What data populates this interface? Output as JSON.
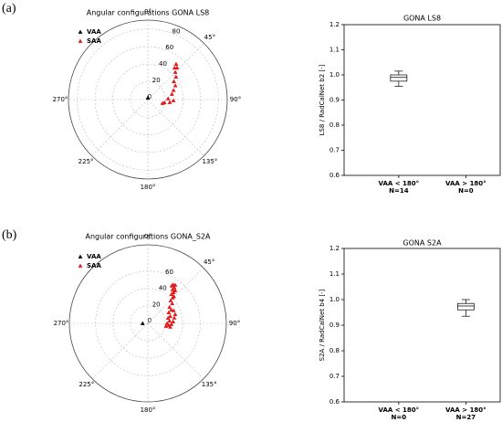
{
  "panel_labels": [
    "(a)",
    "(b)"
  ],
  "chart_data": [
    {
      "type": "polar_scatter",
      "title": "Angular configurations GONA LS8",
      "rlim": [
        0,
        90
      ],
      "rticks": [
        0,
        20,
        40,
        60,
        80
      ],
      "thetaticks": [
        {
          "value": 0,
          "label": "0°"
        },
        {
          "value": 45,
          "label": "45°"
        },
        {
          "value": 90,
          "label": "90°"
        },
        {
          "value": 135,
          "label": "135°"
        },
        {
          "value": 180,
          "label": "180°"
        },
        {
          "value": 225,
          "label": "225°"
        },
        {
          "value": 270,
          "label": "270°"
        }
      ],
      "grid": true,
      "series": [
        {
          "name": "VAA",
          "color": "#000000",
          "theta": [
            0
          ],
          "values": [
            2
          ]
        },
        {
          "name": "SAA",
          "color": "#e31a1c",
          "theta": [
            38.5,
            42.4,
            45,
            51,
            55,
            63,
            70,
            77,
            87,
            100,
            97,
            92,
            104,
            40
          ],
          "values": [
            51.5,
            49,
            44,
            41,
            36,
            35,
            31,
            28,
            23,
            19,
            25,
            29,
            17,
            47
          ]
        }
      ]
    },
    {
      "type": "box",
      "title": "GONA LS8",
      "ylabel": "LS8 / RadCalNet b2 [-]",
      "categories": [
        "VAA < 180°",
        "VAA > 180°"
      ],
      "n_labels": [
        "N=14",
        "N=0"
      ],
      "boxes": [
        {
          "min": 0.955,
          "q1": 0.975,
          "median": 0.99,
          "q3": 1.0,
          "max": 1.015
        },
        null
      ],
      "ylim": [
        0.6,
        1.2
      ],
      "yticks": [
        0.6,
        0.7,
        0.8,
        0.9,
        {
          "value": 1,
          "label": "1.0"
        },
        1.1,
        1.2
      ]
    },
    {
      "type": "polar_scatter",
      "title": "Angular configurations GONA_S2A",
      "rlim": [
        0,
        90
      ],
      "rticks": [
        0,
        20,
        40,
        60
      ],
      "thetaticks": [
        {
          "value": 0,
          "label": "0°"
        },
        {
          "value": 45,
          "label": "45°"
        },
        {
          "value": 90,
          "label": "90°"
        },
        {
          "value": 135,
          "label": "135°"
        },
        {
          "value": 180,
          "label": "180°"
        },
        {
          "value": 225,
          "label": "225°"
        },
        {
          "value": 270,
          "label": "270°"
        }
      ],
      "grid": true,
      "series": [
        {
          "name": "VAA",
          "color": "#000000",
          "theta": [
            270
          ],
          "values": [
            6
          ]
        },
        {
          "name": "SAA",
          "color": "#e31a1c",
          "theta": [
            33.1,
            35.5,
            32.4,
            36.6,
            36.1,
            39.8,
            39.5,
            39.1,
            44,
            44,
            45,
            50.8,
            53,
            60,
            62.4,
            72,
            75,
            83,
            90,
            95,
            99,
            98.5,
            92,
            86,
            78,
            71.6,
            63.4
          ],
          "values": [
            53,
            54,
            51,
            51,
            48,
            49,
            46,
            43,
            43,
            41,
            37,
            36,
            31,
            31,
            27,
            27,
            24,
            25,
            22,
            24,
            26,
            21,
            27,
            29,
            31,
            33,
            33
          ]
        }
      ]
    },
    {
      "type": "box",
      "title": "GONA S2A",
      "ylabel": "S2A / RadCalNet b4 [-]",
      "categories": [
        "VAA < 180°",
        "VAA > 180°"
      ],
      "n_labels": [
        "N=0",
        "N=27"
      ],
      "boxes": [
        null,
        {
          "min": 0.935,
          "q1": 0.96,
          "median": 0.975,
          "q3": 0.985,
          "max": 1.0
        }
      ],
      "ylim": [
        0.6,
        1.2
      ],
      "yticks": [
        0.6,
        0.7,
        0.8,
        0.9,
        {
          "value": 1,
          "label": "1.0"
        },
        1.1,
        1.2
      ]
    }
  ]
}
